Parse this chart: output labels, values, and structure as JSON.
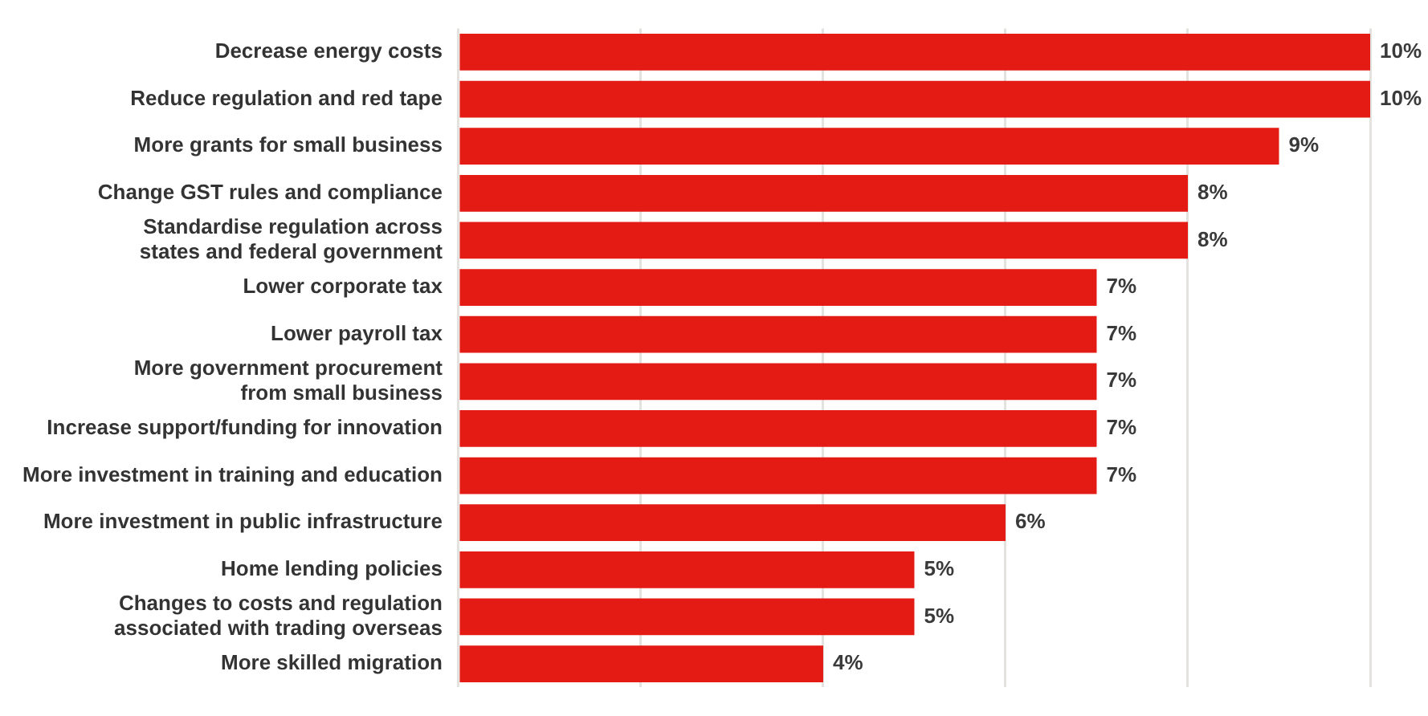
{
  "chart_data": {
    "type": "bar",
    "orientation": "horizontal",
    "categories": [
      "Decrease energy costs",
      "Reduce regulation and red tape",
      "More grants for small business",
      "Change GST rules and compliance",
      "Standardise regulation across\nstates and federal government",
      "Lower corporate tax",
      "Lower payroll tax",
      "More government procurement\nfrom small business",
      "Increase support/funding for innovation",
      "More investment in training and education",
      "More investment in public infrastructure",
      "Home lending policies",
      "Changes to costs and regulation\nassociated with trading overseas",
      "More skilled migration"
    ],
    "values": [
      10,
      10,
      9,
      8,
      8,
      7,
      7,
      7,
      7,
      7,
      6,
      5,
      5,
      4
    ],
    "value_labels": [
      "10%",
      "10%",
      "9%",
      "8%",
      "8%",
      "7%",
      "7%",
      "7%",
      "7%",
      "7%",
      "6%",
      "5%",
      "5%",
      "4%"
    ],
    "color": "#e31b14",
    "xlim": [
      0,
      10
    ],
    "xticks": [
      {
        "value": 0,
        "label": null
      },
      {
        "value": 2,
        "label": null
      },
      {
        "value": 4,
        "label": null
      },
      {
        "value": 6,
        "label": null
      },
      {
        "value": 8,
        "label": null
      },
      {
        "value": 10,
        "label": null
      }
    ],
    "grid": "x",
    "legend": false,
    "tick_labels": "y"
  }
}
